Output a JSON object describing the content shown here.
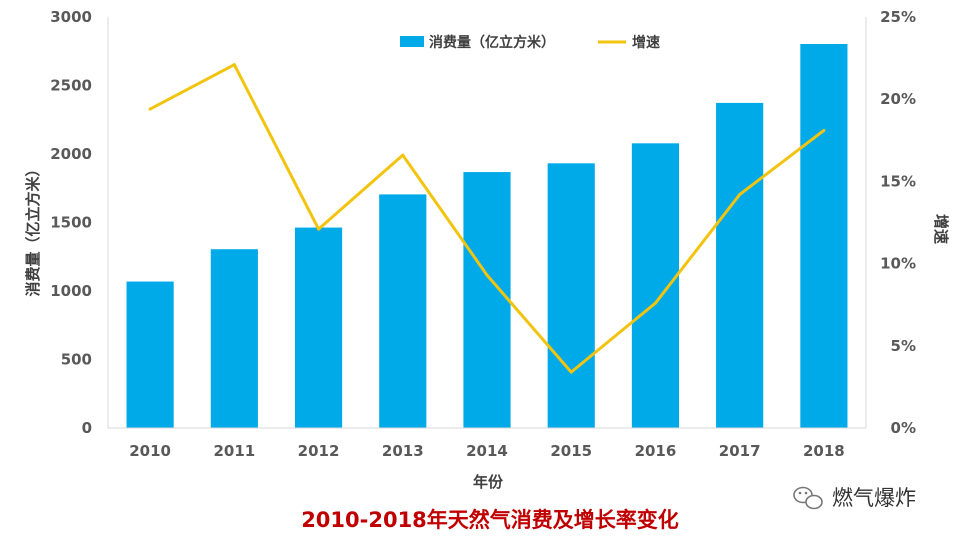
{
  "chart_data": {
    "type": "bar",
    "categories": [
      "2010",
      "2011",
      "2012",
      "2013",
      "2014",
      "2015",
      "2016",
      "2017",
      "2018"
    ],
    "series": [
      {
        "name": "消费量（亿立方米）",
        "type": "bar",
        "axis": "left",
        "color": "#00A9E8",
        "values": [
          1069,
          1305,
          1463,
          1705,
          1868,
          1932,
          2078,
          2373,
          2803
        ]
      },
      {
        "name": "增速",
        "type": "line",
        "axis": "right",
        "color": "#F2C40F",
        "values": [
          19.4,
          22.1,
          12.1,
          16.6,
          9.3,
          3.4,
          7.6,
          14.2,
          18.1
        ]
      }
    ],
    "xlabel": "年份",
    "ylabel": "消费量（亿立方米）",
    "y2label": "增速",
    "ylim": [
      0,
      3000
    ],
    "y2lim": [
      0,
      25
    ],
    "yticks": [
      "0",
      "500",
      "1000",
      "1500",
      "2000",
      "2500",
      "3000"
    ],
    "y2ticks": [
      "0%",
      "5%",
      "10%",
      "15%",
      "20%",
      "25%"
    ],
    "legend_position": "top-center",
    "grid": false
  },
  "caption": "2010-2018年天然气消费及增长率变化",
  "watermark": {
    "text": "燃气爆炸",
    "icon": "wechat-icon"
  }
}
